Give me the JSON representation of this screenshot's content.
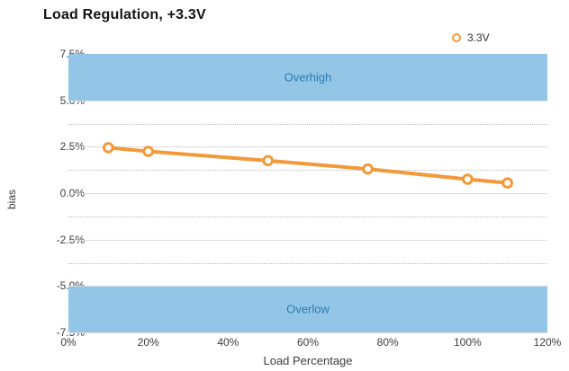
{
  "title": "Load Regulation, +3.3V",
  "legend": {
    "label": "3.3V",
    "marker": "orange-ring"
  },
  "axes": {
    "xlabel": "Load Percentage",
    "ylabel": "bias"
  },
  "colors": {
    "series": "#F2993A",
    "band_fill": "#92C5E6",
    "band_label": "#2E7CB0",
    "grid_major": "#dcdcdc",
    "grid_minor": "#bdbdbd",
    "text": "#3c3c3c",
    "title_text": "#141414"
  },
  "chart_data": {
    "type": "line",
    "title": "Load Regulation, +3.3V",
    "xlabel": "Load Percentage",
    "ylabel": "bias",
    "xlim": [
      0,
      120
    ],
    "ylim": [
      -7.5,
      7.5
    ],
    "grid": {
      "major_step": 2.5,
      "minor_step": 1.25,
      "major_style": "solid",
      "minor_style": "dotted"
    },
    "legend_position": "top-right",
    "x_ticks": {
      "values": [
        0,
        20,
        40,
        60,
        80,
        100,
        120
      ],
      "labels": [
        "0%",
        "20%",
        "40%",
        "60%",
        "80%",
        "100%",
        "120%"
      ]
    },
    "y_ticks": {
      "values": [
        7.5,
        5.0,
        2.5,
        0.0,
        -2.5,
        -5.0,
        -7.5
      ],
      "labels": [
        "7.5%",
        "5.0%",
        "2.5%",
        "0.0%",
        "-2.5%",
        "-5.0%",
        "-7.5%"
      ]
    },
    "series": [
      {
        "name": "3.3V",
        "x": [
          10,
          20,
          50,
          75,
          100,
          110
        ],
        "y": [
          2.45,
          2.25,
          1.75,
          1.3,
          0.75,
          0.55
        ],
        "color": "#F2993A",
        "marker": "open-circle"
      }
    ],
    "bands": [
      {
        "label": "Overhigh",
        "from": 5.0,
        "to": 7.5,
        "label_at": 6.25
      },
      {
        "label": "Overlow",
        "from": -7.5,
        "to": -5.0,
        "label_at": -6.25
      }
    ],
    "minor_gridlines": [
      6.25,
      3.75,
      1.25,
      -1.25,
      -3.75,
      -6.25
    ],
    "major_gridlines": [
      5.0,
      2.5,
      0.0,
      -2.5,
      -5.0,
      -7.5
    ]
  }
}
